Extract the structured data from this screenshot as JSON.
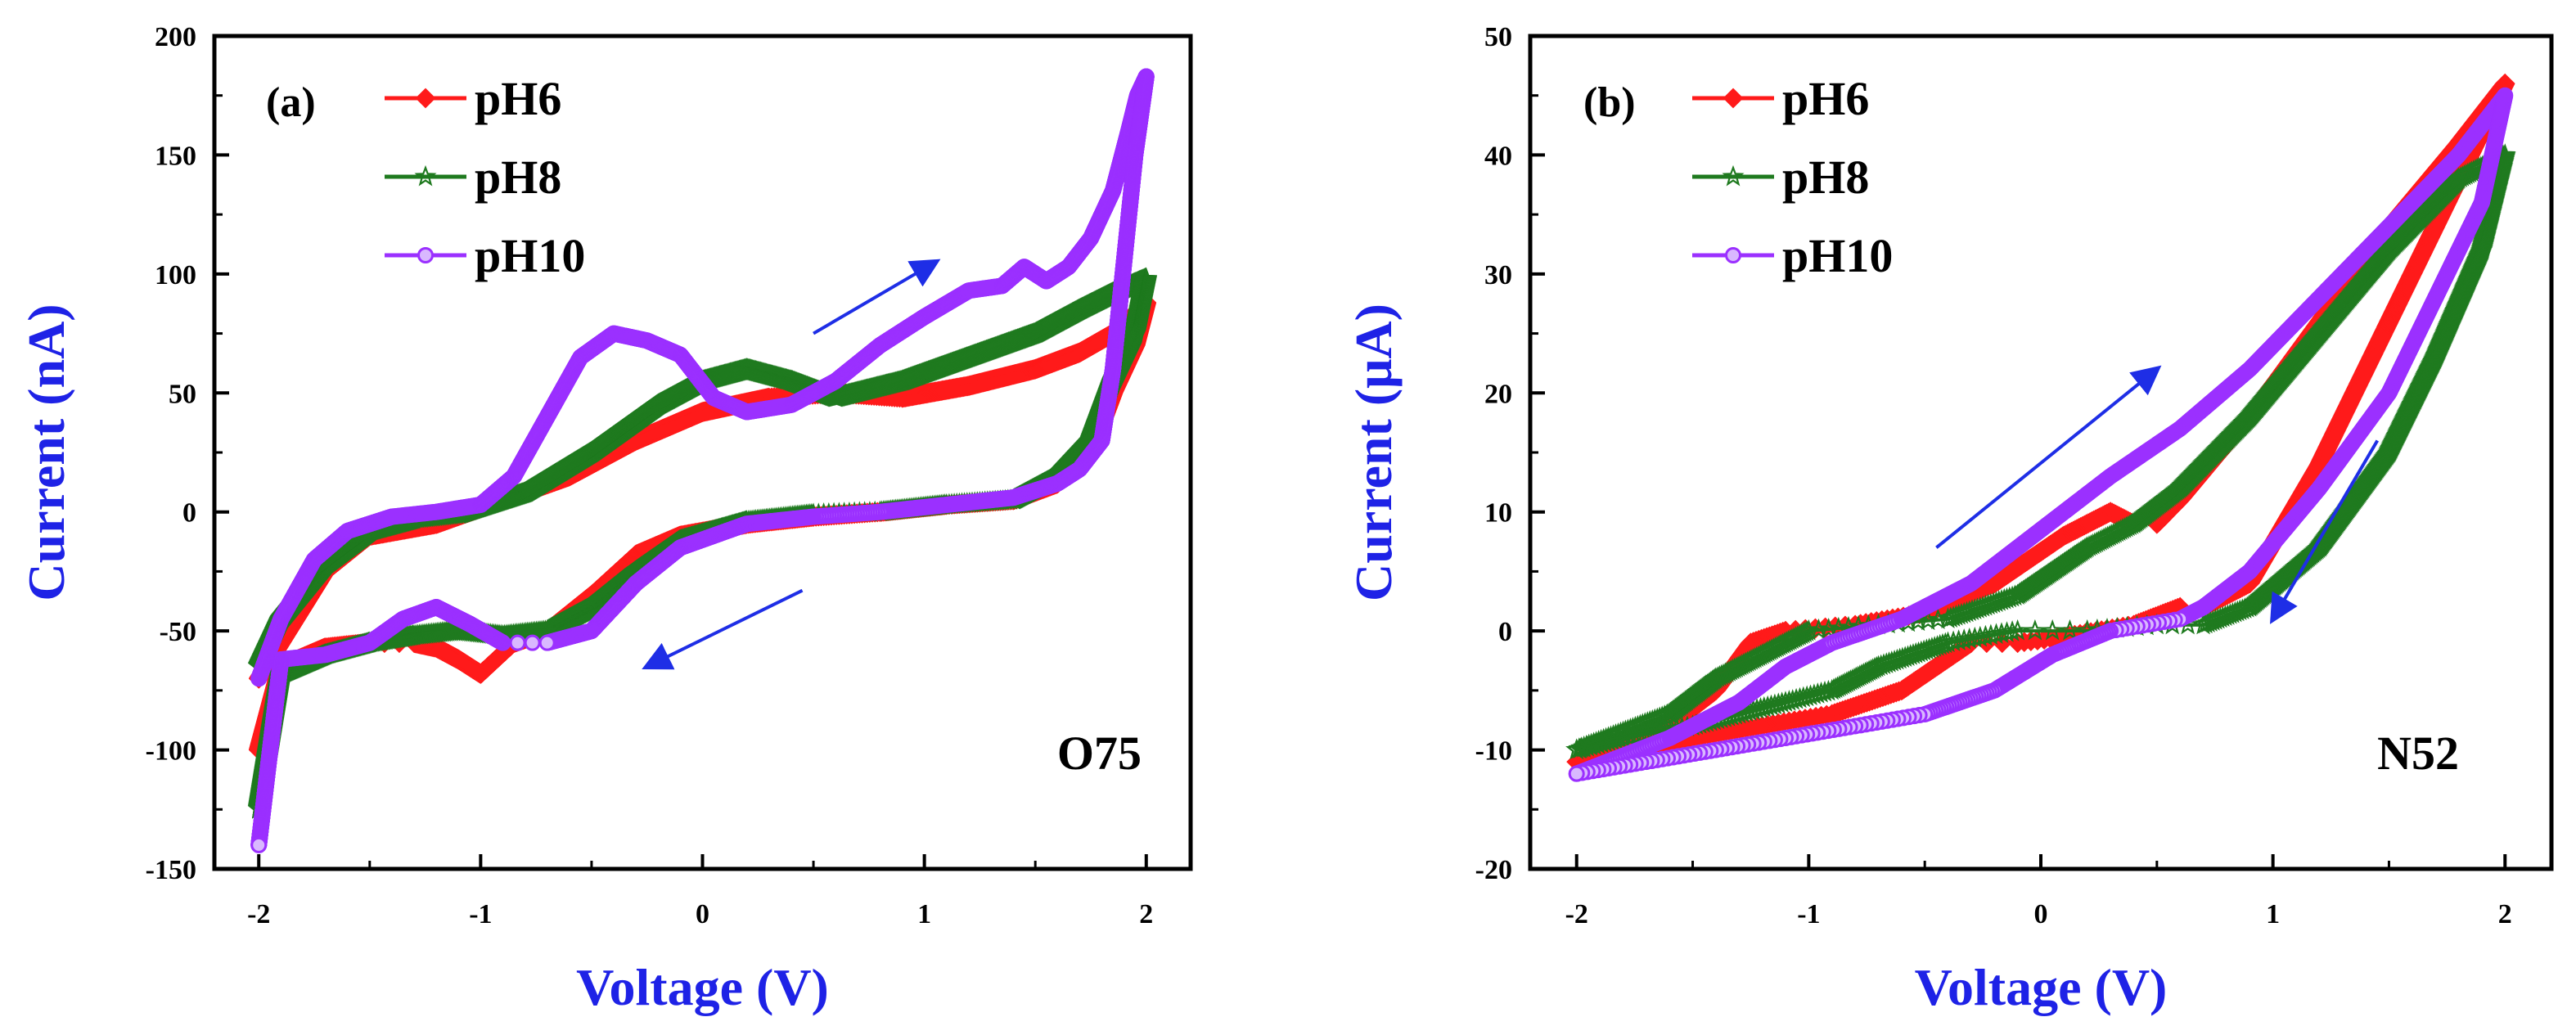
{
  "colors": {
    "pH6": "#ff1a1a",
    "pH8": "#1f7a1f",
    "pH10": "#9b30ff",
    "axis_title": "#1e22e6",
    "arrow": "#1e2ee6"
  },
  "chart_data": [
    {
      "type": "line",
      "panel": "(a)",
      "annotation": "O75",
      "xlabel": "Voltage (V)",
      "ylabel": "Current (nA)",
      "xlim": [
        -2.2,
        2.2
      ],
      "ylim": [
        -150,
        200
      ],
      "xticks": [
        "-2",
        "-1",
        "0",
        "1",
        "2"
      ],
      "yticks": [
        "-150",
        "-100",
        "-50",
        "0",
        "50",
        "100",
        "150",
        "200"
      ],
      "legend": [
        "pH6",
        "pH8",
        "pH10"
      ],
      "legend_position": "top-left",
      "arrows": [
        {
          "from": [
            0.5,
            75
          ],
          "to": [
            1.05,
            105
          ]
        },
        {
          "from": [
            0.45,
            -33
          ],
          "to": [
            -0.25,
            -65
          ]
        }
      ],
      "series": [
        {
          "name": "pH6",
          "marker": "diamond",
          "x": [
            -2,
            -1.9,
            -1.7,
            -1.5,
            -1.2,
            -0.9,
            -0.6,
            -0.3,
            0,
            0.3,
            0.6,
            0.9,
            1.2,
            1.5,
            1.7,
            1.85,
            2,
            1.95,
            1.85,
            1.75,
            1.6,
            1.4,
            1.1,
            0.8,
            0.5,
            0.2,
            -0.1,
            -0.3,
            -0.5,
            -0.7,
            -0.85,
            -1.0,
            -1.1,
            -1.2,
            -1.3,
            -1.5,
            -1.7,
            -1.9,
            -2
          ],
          "y": [
            -70,
            -55,
            -25,
            -10,
            -5,
            5,
            15,
            30,
            42,
            48,
            50,
            48,
            53,
            60,
            67,
            75,
            88,
            70,
            50,
            25,
            12,
            5,
            3,
            0,
            -2,
            -5,
            -10,
            -18,
            -35,
            -50,
            -55,
            -68,
            -62,
            -57,
            -55,
            -55,
            -57,
            -65,
            -100
          ]
        },
        {
          "name": "pH8",
          "marker": "star",
          "x": [
            -2,
            -1.9,
            -1.7,
            -1.5,
            -1.3,
            -1.1,
            -0.8,
            -0.5,
            -0.2,
            0,
            0.2,
            0.4,
            0.6,
            0.9,
            1.2,
            1.5,
            1.7,
            1.85,
            2,
            1.95,
            1.85,
            1.75,
            1.6,
            1.4,
            1.1,
            0.8,
            0.5,
            0.2,
            -0.1,
            -0.3,
            -0.5,
            -0.7,
            -0.9,
            -1.1,
            -1.3,
            -1.5,
            -1.7,
            -1.9,
            -2
          ],
          "y": [
            -65,
            -45,
            -22,
            -8,
            -3,
            -1,
            8,
            25,
            45,
            55,
            60,
            55,
            48,
            55,
            65,
            75,
            85,
            92,
            98,
            75,
            55,
            30,
            15,
            5,
            3,
            0,
            -1,
            -4,
            -12,
            -25,
            -40,
            -50,
            -52,
            -50,
            -52,
            -55,
            -60,
            -68,
            -125
          ]
        },
        {
          "name": "pH10",
          "marker": "circle",
          "x": [
            -2,
            -1.9,
            -1.75,
            -1.6,
            -1.4,
            -1.2,
            -1.0,
            -0.85,
            -0.7,
            -0.55,
            -0.4,
            -0.25,
            -0.1,
            0.05,
            0.2,
            0.4,
            0.6,
            0.8,
            1.0,
            1.2,
            1.35,
            1.45,
            1.55,
            1.65,
            1.75,
            1.85,
            1.92,
            1.96,
            2,
            1.95,
            1.9,
            1.85,
            1.8,
            1.7,
            1.6,
            1.4,
            1.1,
            0.8,
            0.5,
            0.2,
            -0.1,
            -0.3,
            -0.5,
            -0.7,
            -0.9,
            -1.05,
            -1.2,
            -1.35,
            -1.5,
            -1.7,
            -1.9,
            -2
          ],
          "y": [
            -70,
            -45,
            -20,
            -8,
            -2,
            0,
            3,
            15,
            40,
            65,
            75,
            72,
            66,
            48,
            42,
            45,
            55,
            70,
            82,
            93,
            95,
            103,
            97,
            103,
            115,
            135,
            160,
            175,
            183,
            150,
            105,
            60,
            30,
            18,
            12,
            6,
            3,
            0,
            -2,
            -5,
            -15,
            -30,
            -50,
            -55,
            -55,
            -47,
            -40,
            -45,
            -55,
            -60,
            -62,
            -140
          ]
        }
      ]
    },
    {
      "type": "line",
      "panel": "(b)",
      "annotation": "N52",
      "xlabel": "Voltage (V)",
      "ylabel": "Current (μA)",
      "xlim": [
        -2.2,
        2.2
      ],
      "ylim": [
        -20,
        50
      ],
      "xticks": [
        "-2",
        "-1",
        "0",
        "1",
        "2"
      ],
      "yticks": [
        "-20",
        "-10",
        "0",
        "10",
        "20",
        "30",
        "40",
        "50"
      ],
      "legend": [
        "pH6",
        "pH8",
        "pH10"
      ],
      "legend_position": "top-left",
      "arrows": [
        {
          "from": [
            -0.45,
            7
          ],
          "to": [
            0.5,
            22
          ]
        },
        {
          "from": [
            1.45,
            16
          ],
          "to": [
            1.0,
            1
          ]
        }
      ],
      "series": [
        {
          "name": "pH6",
          "marker": "diamond",
          "x": [
            -2,
            -1.6,
            -1.4,
            -1.25,
            -1.1,
            -0.8,
            -0.5,
            -0.2,
            0.1,
            0.3,
            0.4,
            0.5,
            0.6,
            0.9,
            1.2,
            1.5,
            1.8,
            2,
            1.8,
            1.5,
            1.2,
            0.9,
            0.7,
            0.6,
            0.4,
            0.1,
            -0.1,
            -0.3,
            -0.6,
            -0.9,
            -1.2,
            -1.5,
            -1.8,
            -2
          ],
          "y": [
            -11,
            -8,
            -5,
            -1,
            0,
            0.5,
            1.5,
            4,
            8,
            10,
            9,
            9,
            11,
            18,
            26,
            34,
            41,
            46,
            38,
            26,
            14,
            4,
            2,
            2,
            0.5,
            -0.5,
            -1,
            -1,
            -5,
            -7,
            -8,
            -9,
            -10.5,
            -11
          ]
        },
        {
          "name": "pH8",
          "marker": "star",
          "x": [
            -2,
            -1.6,
            -1.4,
            -1.2,
            -1.0,
            -0.7,
            -0.4,
            -0.1,
            0.2,
            0.4,
            0.6,
            0.9,
            1.2,
            1.5,
            1.8,
            2,
            1.9,
            1.7,
            1.5,
            1.2,
            0.9,
            0.7,
            0.5,
            0.2,
            -0.1,
            -0.4,
            -0.7,
            -0.9,
            -1.1,
            -1.3,
            -1.5,
            -1.8,
            -2
          ],
          "y": [
            -10,
            -7,
            -4,
            -2,
            0,
            0.5,
            1,
            3,
            7,
            9,
            12,
            18,
            25,
            32,
            38,
            40,
            32,
            23,
            15,
            7,
            2,
            0.5,
            0.5,
            0,
            0,
            -1,
            -3,
            -5,
            -6,
            -7,
            -8,
            -9,
            -10
          ]
        },
        {
          "name": "pH10",
          "marker": "circle",
          "x": [
            -2,
            -1.6,
            -1.3,
            -1.1,
            -0.9,
            -0.6,
            -0.3,
            -0.1,
            0.1,
            0.3,
            0.6,
            0.9,
            1.2,
            1.5,
            1.8,
            2,
            1.9,
            1.7,
            1.5,
            1.2,
            0.9,
            0.7,
            0.6,
            0.3,
            0.05,
            -0.2,
            -0.5,
            -0.8,
            -1.1,
            -1.4,
            -1.7,
            -2
          ],
          "y": [
            -12,
            -9,
            -6,
            -3,
            -1,
            1,
            4,
            7,
            10,
            13,
            17,
            22,
            28,
            34,
            40,
            45,
            36,
            28,
            20,
            12,
            5,
            2,
            1,
            0,
            -2,
            -5,
            -7,
            -8,
            -9,
            -10,
            -11,
            -12
          ]
        }
      ]
    }
  ]
}
